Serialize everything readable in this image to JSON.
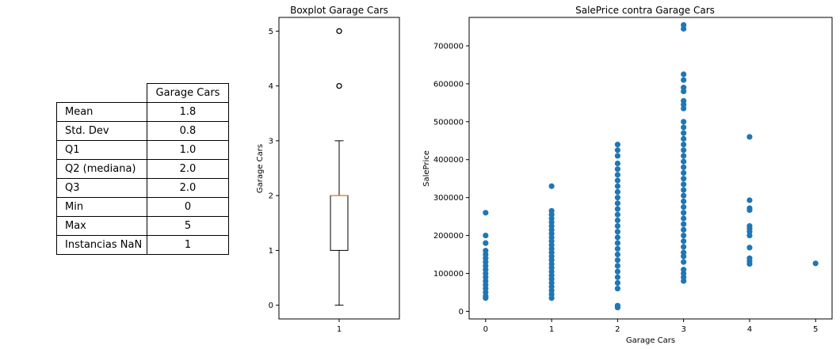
{
  "table": {
    "header": "Garage Cars",
    "rows": [
      {
        "label": "Mean",
        "value": "1.8"
      },
      {
        "label": "Std. Dev",
        "value": "0.8"
      },
      {
        "label": "Q1",
        "value": "1.0"
      },
      {
        "label": "Q2 (mediana)",
        "value": "2.0"
      },
      {
        "label": "Q3",
        "value": "2.0"
      },
      {
        "label": "Min",
        "value": "0"
      },
      {
        "label": "Max",
        "value": "5"
      },
      {
        "label": "Instancias NaN",
        "value": "1"
      }
    ]
  },
  "chart_data": [
    {
      "type": "box",
      "title": "Boxplot Garage Cars",
      "xlabel": "",
      "ylabel": "Garage Cars",
      "categories": [
        "1"
      ],
      "ylim": [
        -0.25,
        5.25
      ],
      "yticks": [
        0,
        1,
        2,
        3,
        4,
        5
      ],
      "box": {
        "min": 0,
        "q1": 1,
        "median": 2,
        "q3": 2,
        "max": 3,
        "whisker_low": 0,
        "whisker_high": 3,
        "outliers": [
          4,
          5
        ]
      },
      "colors": {
        "median": "#ff8c00",
        "box": "#000000"
      }
    },
    {
      "type": "scatter",
      "title": "SalePrice contra Garage Cars",
      "xlabel": "Garage Cars",
      "ylabel": "SalePrice",
      "xlim": [
        -0.25,
        5.25
      ],
      "ylim": [
        -20000,
        775000
      ],
      "xticks": [
        0,
        1,
        2,
        3,
        4,
        5
      ],
      "yticks": [
        0,
        100000,
        200000,
        300000,
        400000,
        500000,
        600000,
        700000
      ],
      "color": "#1f77b4",
      "points": [
        {
          "x": 0,
          "y": 260000
        },
        {
          "x": 0,
          "y": 200000
        },
        {
          "x": 0,
          "y": 180000
        },
        {
          "x": 0,
          "y": 160000
        },
        {
          "x": 0,
          "y": 150000
        },
        {
          "x": 0,
          "y": 140000
        },
        {
          "x": 0,
          "y": 130000
        },
        {
          "x": 0,
          "y": 120000
        },
        {
          "x": 0,
          "y": 110000
        },
        {
          "x": 0,
          "y": 100000
        },
        {
          "x": 0,
          "y": 90000
        },
        {
          "x": 0,
          "y": 80000
        },
        {
          "x": 0,
          "y": 70000
        },
        {
          "x": 0,
          "y": 60000
        },
        {
          "x": 0,
          "y": 50000
        },
        {
          "x": 0,
          "y": 40000
        },
        {
          "x": 0,
          "y": 35000
        },
        {
          "x": 1,
          "y": 330000
        },
        {
          "x": 1,
          "y": 265000
        },
        {
          "x": 1,
          "y": 255000
        },
        {
          "x": 1,
          "y": 245000
        },
        {
          "x": 1,
          "y": 235000
        },
        {
          "x": 1,
          "y": 225000
        },
        {
          "x": 1,
          "y": 215000
        },
        {
          "x": 1,
          "y": 205000
        },
        {
          "x": 1,
          "y": 195000
        },
        {
          "x": 1,
          "y": 185000
        },
        {
          "x": 1,
          "y": 175000
        },
        {
          "x": 1,
          "y": 165000
        },
        {
          "x": 1,
          "y": 155000
        },
        {
          "x": 1,
          "y": 145000
        },
        {
          "x": 1,
          "y": 135000
        },
        {
          "x": 1,
          "y": 125000
        },
        {
          "x": 1,
          "y": 115000
        },
        {
          "x": 1,
          "y": 105000
        },
        {
          "x": 1,
          "y": 95000
        },
        {
          "x": 1,
          "y": 85000
        },
        {
          "x": 1,
          "y": 75000
        },
        {
          "x": 1,
          "y": 65000
        },
        {
          "x": 1,
          "y": 55000
        },
        {
          "x": 1,
          "y": 45000
        },
        {
          "x": 1,
          "y": 35000
        },
        {
          "x": 2,
          "y": 440000
        },
        {
          "x": 2,
          "y": 425000
        },
        {
          "x": 2,
          "y": 410000
        },
        {
          "x": 2,
          "y": 390000
        },
        {
          "x": 2,
          "y": 375000
        },
        {
          "x": 2,
          "y": 360000
        },
        {
          "x": 2,
          "y": 345000
        },
        {
          "x": 2,
          "y": 330000
        },
        {
          "x": 2,
          "y": 315000
        },
        {
          "x": 2,
          "y": 300000
        },
        {
          "x": 2,
          "y": 285000
        },
        {
          "x": 2,
          "y": 270000
        },
        {
          "x": 2,
          "y": 255000
        },
        {
          "x": 2,
          "y": 240000
        },
        {
          "x": 2,
          "y": 225000
        },
        {
          "x": 2,
          "y": 210000
        },
        {
          "x": 2,
          "y": 195000
        },
        {
          "x": 2,
          "y": 180000
        },
        {
          "x": 2,
          "y": 165000
        },
        {
          "x": 2,
          "y": 150000
        },
        {
          "x": 2,
          "y": 135000
        },
        {
          "x": 2,
          "y": 120000
        },
        {
          "x": 2,
          "y": 105000
        },
        {
          "x": 2,
          "y": 90000
        },
        {
          "x": 2,
          "y": 75000
        },
        {
          "x": 2,
          "y": 60000
        },
        {
          "x": 2,
          "y": 15000
        },
        {
          "x": 2,
          "y": 10000
        },
        {
          "x": 3,
          "y": 755000
        },
        {
          "x": 3,
          "y": 745000
        },
        {
          "x": 3,
          "y": 625000
        },
        {
          "x": 3,
          "y": 610000
        },
        {
          "x": 3,
          "y": 590000
        },
        {
          "x": 3,
          "y": 580000
        },
        {
          "x": 3,
          "y": 555000
        },
        {
          "x": 3,
          "y": 545000
        },
        {
          "x": 3,
          "y": 535000
        },
        {
          "x": 3,
          "y": 500000
        },
        {
          "x": 3,
          "y": 485000
        },
        {
          "x": 3,
          "y": 470000
        },
        {
          "x": 3,
          "y": 455000
        },
        {
          "x": 3,
          "y": 440000
        },
        {
          "x": 3,
          "y": 425000
        },
        {
          "x": 3,
          "y": 410000
        },
        {
          "x": 3,
          "y": 395000
        },
        {
          "x": 3,
          "y": 380000
        },
        {
          "x": 3,
          "y": 365000
        },
        {
          "x": 3,
          "y": 350000
        },
        {
          "x": 3,
          "y": 335000
        },
        {
          "x": 3,
          "y": 320000
        },
        {
          "x": 3,
          "y": 305000
        },
        {
          "x": 3,
          "y": 290000
        },
        {
          "x": 3,
          "y": 275000
        },
        {
          "x": 3,
          "y": 260000
        },
        {
          "x": 3,
          "y": 245000
        },
        {
          "x": 3,
          "y": 230000
        },
        {
          "x": 3,
          "y": 215000
        },
        {
          "x": 3,
          "y": 200000
        },
        {
          "x": 3,
          "y": 185000
        },
        {
          "x": 3,
          "y": 170000
        },
        {
          "x": 3,
          "y": 155000
        },
        {
          "x": 3,
          "y": 145000
        },
        {
          "x": 3,
          "y": 130000
        },
        {
          "x": 3,
          "y": 110000
        },
        {
          "x": 3,
          "y": 100000
        },
        {
          "x": 3,
          "y": 90000
        },
        {
          "x": 3,
          "y": 80000
        },
        {
          "x": 4,
          "y": 460000
        },
        {
          "x": 4,
          "y": 293000
        },
        {
          "x": 4,
          "y": 272000
        },
        {
          "x": 4,
          "y": 267000
        },
        {
          "x": 4,
          "y": 225000
        },
        {
          "x": 4,
          "y": 218000
        },
        {
          "x": 4,
          "y": 210000
        },
        {
          "x": 4,
          "y": 200000
        },
        {
          "x": 4,
          "y": 168000
        },
        {
          "x": 4,
          "y": 140000
        },
        {
          "x": 4,
          "y": 132000
        },
        {
          "x": 4,
          "y": 125000
        },
        {
          "x": 5,
          "y": 126500
        }
      ]
    }
  ]
}
